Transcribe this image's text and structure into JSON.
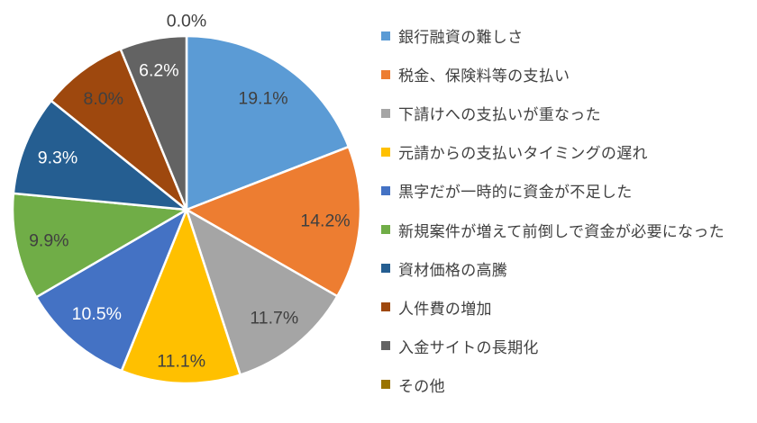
{
  "chart_data": {
    "type": "pie",
    "title": "",
    "unit": "%",
    "start_angle_deg": 0,
    "direction": "clockwise",
    "legend_position": "right",
    "background_color": "#FFFFFF",
    "slice_border_color": "#FFFFFF",
    "data_label_dark_color": "#404040",
    "series": [
      {
        "label": "銀行融資の難しさ",
        "value": 19.1,
        "display": "19.1%",
        "color": "#5B9BD5",
        "label_color": "#404040",
        "label_frac": 0.78
      },
      {
        "label": "税金、保険料等の支払い",
        "value": 14.2,
        "display": "14.2%",
        "color": "#ED7D31",
        "label_color": "#404040",
        "label_frac": 0.8
      },
      {
        "label": "下請けへの支払いが重なった",
        "value": 11.7,
        "display": "11.7%",
        "color": "#A5A5A5",
        "label_color": "#404040",
        "label_frac": 0.8
      },
      {
        "label": "元請からの支払いタイミングの遅れ",
        "value": 11.1,
        "display": "11.1%",
        "color": "#FFC000",
        "label_color": "#404040",
        "label_frac": 0.87
      },
      {
        "label": "黒字だが一時的に資金が不足した",
        "value": 10.5,
        "display": "10.5%",
        "color": "#4472C4",
        "label_color": "#FFFFFF",
        "label_frac": 0.79
      },
      {
        "label": "新規案件が増えて前倒しで資金が必要になった",
        "value": 9.9,
        "display": "9.9%",
        "color": "#70AD47",
        "label_color": "#404040",
        "label_frac": 0.81
      },
      {
        "label": "資材価格の高騰",
        "value": 9.3,
        "display": "9.3%",
        "color": "#255E91",
        "label_color": "#FFFFFF",
        "label_frac": 0.8
      },
      {
        "label": "人件費の増加",
        "value": 8.0,
        "display": "8.0%",
        "color": "#9E480E",
        "label_color": "#404040",
        "label_frac": 0.8
      },
      {
        "label": "入金サイトの長期化",
        "value": 6.2,
        "display": "6.2%",
        "color": "#636363",
        "label_color": "#FFFFFF",
        "label_frac": 0.82
      },
      {
        "label": "その他",
        "value": 0.0,
        "display": "0.0%",
        "color": "#997300",
        "label_color": "#404040",
        "label_frac": 1.09
      }
    ]
  }
}
